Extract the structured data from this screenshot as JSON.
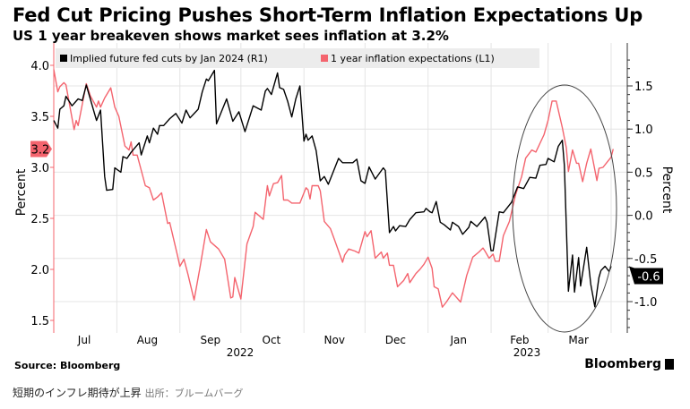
{
  "title": "Fed Cut Pricing Pushes Short-Term Inflation Expectations Up",
  "subtitle": "US 1 year breakeven shows market sees inflation at 3.2%",
  "source": "Source: Bloomberg",
  "logo": "Bloomberg",
  "caption": "短期のインフレ期待が上昇",
  "caption_credit": "出所：ブルームバーグ",
  "chart_data": {
    "type": "line",
    "title": "US 1 year breakeven shows market sees inflation at 3.2%",
    "xlabel": "",
    "ylabel_left": "Percent",
    "ylabel_right": "Percent",
    "ylim_left": [
      1.4,
      4.2
    ],
    "ylim_right": [
      -1.3,
      1.9
    ],
    "yticks_left": [
      "1.5",
      "2.0",
      "2.5",
      "3.0",
      "3.5",
      "4.0"
    ],
    "yticks_right": [
      "-1.0",
      "-0.5",
      "0.0",
      "0.5",
      "1.0",
      "1.5"
    ],
    "xticks": [
      "Jul",
      "Aug",
      "Sep",
      "Oct",
      "Nov",
      "Dec",
      "Jan",
      "Feb",
      "Mar"
    ],
    "year_labels": [
      "2022",
      "2023"
    ],
    "grid": true,
    "legend_position": "top-left",
    "annotation": "ellipse around Feb–Mar 2023",
    "series": [
      {
        "name": "Implied future fed cuts by Jan 2024 (R1)",
        "axis": "right",
        "color": "#000000",
        "last_label": "-0.6",
        "points": [
          [
            "2022-07-01",
            1.1
          ],
          [
            "2022-07-03",
            1.01
          ],
          [
            "2022-07-04",
            1.23
          ],
          [
            "2022-07-06",
            1.27
          ],
          [
            "2022-07-07",
            1.38
          ],
          [
            "2022-07-10",
            1.27
          ],
          [
            "2022-07-13",
            1.35
          ],
          [
            "2022-07-15",
            1.33
          ],
          [
            "2022-07-17",
            1.51
          ],
          [
            "2022-07-22",
            1.1
          ],
          [
            "2022-07-24",
            1.22
          ],
          [
            "2022-07-26",
            0.45
          ],
          [
            "2022-07-27",
            0.29
          ],
          [
            "2022-07-30",
            0.3
          ],
          [
            "2022-07-31",
            0.55
          ],
          [
            "2022-08-03",
            0.5
          ],
          [
            "2022-08-04",
            0.68
          ],
          [
            "2022-08-06",
            0.66
          ],
          [
            "2022-08-08",
            0.73
          ],
          [
            "2022-08-12",
            0.84
          ],
          [
            "2022-08-13",
            0.7
          ],
          [
            "2022-08-16",
            0.92
          ],
          [
            "2022-08-17",
            0.84
          ],
          [
            "2022-08-19",
            1.01
          ],
          [
            "2022-08-21",
            0.94
          ],
          [
            "2022-08-22",
            1.04
          ],
          [
            "2022-08-24",
            1.04
          ],
          [
            "2022-08-27",
            1.12
          ],
          [
            "2022-08-30",
            1.18
          ],
          [
            "2022-09-02",
            1.07
          ],
          [
            "2022-09-04",
            1.22
          ],
          [
            "2022-09-06",
            1.13
          ],
          [
            "2022-09-10",
            1.23
          ],
          [
            "2022-09-12",
            1.43
          ],
          [
            "2022-09-14",
            1.58
          ],
          [
            "2022-09-15",
            1.56
          ],
          [
            "2022-09-18",
            1.68
          ],
          [
            "2022-09-19",
            1.06
          ],
          [
            "2022-09-24",
            1.35
          ],
          [
            "2022-09-27",
            1.09
          ],
          [
            "2022-09-30",
            1.2
          ],
          [
            "2022-10-03",
            0.97
          ],
          [
            "2022-10-07",
            1.27
          ],
          [
            "2022-10-11",
            1.22
          ],
          [
            "2022-10-13",
            1.44
          ],
          [
            "2022-10-14",
            1.47
          ],
          [
            "2022-10-16",
            1.4
          ],
          [
            "2022-10-19",
            1.65
          ],
          [
            "2022-10-20",
            1.48
          ],
          [
            "2022-10-22",
            1.46
          ],
          [
            "2022-10-24",
            1.32
          ],
          [
            "2022-10-26",
            1.14
          ],
          [
            "2022-10-28",
            1.35
          ],
          [
            "2022-10-30",
            1.5
          ],
          [
            "2022-11-01",
            0.86
          ],
          [
            "2022-11-02",
            0.94
          ],
          [
            "2022-11-03",
            0.87
          ],
          [
            "2022-11-05",
            0.92
          ],
          [
            "2022-11-07",
            0.75
          ],
          [
            "2022-11-09",
            0.4
          ],
          [
            "2022-11-11",
            0.45
          ],
          [
            "2022-11-13",
            0.36
          ],
          [
            "2022-11-18",
            0.66
          ],
          [
            "2022-11-20",
            0.61
          ],
          [
            "2022-11-25",
            0.61
          ],
          [
            "2022-11-27",
            0.65
          ],
          [
            "2022-11-29",
            0.4
          ],
          [
            "2022-12-01",
            0.37
          ],
          [
            "2022-12-03",
            0.56
          ],
          [
            "2022-12-06",
            0.42
          ],
          [
            "2022-12-10",
            0.55
          ],
          [
            "2022-12-11",
            0.52
          ],
          [
            "2022-12-13",
            -0.2
          ],
          [
            "2022-12-15",
            -0.13
          ],
          [
            "2022-12-16",
            -0.18
          ],
          [
            "2022-12-18",
            -0.12
          ],
          [
            "2022-12-21",
            -0.13
          ],
          [
            "2022-12-23",
            -0.05
          ],
          [
            "2022-12-26",
            0.03
          ],
          [
            "2022-12-30",
            0.04
          ],
          [
            "2022-12-31",
            0.08
          ],
          [
            "2023-01-02",
            0.04
          ],
          [
            "2023-01-03",
            0.03
          ],
          [
            "2023-01-05",
            0.16
          ],
          [
            "2023-01-07",
            -0.08
          ],
          [
            "2023-01-09",
            -0.11
          ],
          [
            "2023-01-12",
            -0.17
          ],
          [
            "2023-01-13",
            -0.08
          ],
          [
            "2023-01-16",
            -0.13
          ],
          [
            "2023-01-18",
            -0.22
          ],
          [
            "2023-01-21",
            -0.14
          ],
          [
            "2023-01-22",
            -0.07
          ],
          [
            "2023-01-25",
            -0.13
          ],
          [
            "2023-01-29",
            -0.02
          ],
          [
            "2023-01-30",
            -0.08
          ],
          [
            "2023-02-01",
            -0.41
          ],
          [
            "2023-02-02",
            -0.41
          ],
          [
            "2023-02-05",
            0.04
          ],
          [
            "2023-02-07",
            0.03
          ],
          [
            "2023-02-11",
            0.15
          ],
          [
            "2023-02-14",
            0.33
          ],
          [
            "2023-02-17",
            0.31
          ],
          [
            "2023-02-20",
            0.44
          ],
          [
            "2023-02-23",
            0.43
          ],
          [
            "2023-02-25",
            0.58
          ],
          [
            "2023-02-28",
            0.59
          ],
          [
            "2023-03-01",
            0.66
          ],
          [
            "2023-03-04",
            0.62
          ],
          [
            "2023-03-06",
            0.8
          ],
          [
            "2023-03-08",
            0.87
          ],
          [
            "2023-03-09",
            0.58
          ],
          [
            "2023-03-11",
            -0.88
          ],
          [
            "2023-03-13",
            -0.46
          ],
          [
            "2023-03-14",
            -0.89
          ],
          [
            "2023-03-16",
            -0.49
          ],
          [
            "2023-03-17",
            -0.82
          ],
          [
            "2023-03-20",
            -0.37
          ],
          [
            "2023-03-22",
            -0.8
          ],
          [
            "2023-03-24",
            -1.06
          ],
          [
            "2023-03-26",
            -0.72
          ],
          [
            "2023-03-27",
            -0.64
          ],
          [
            "2023-03-29",
            -0.59
          ],
          [
            "2023-03-31",
            -0.65
          ],
          [
            "2023-04-01",
            -0.59
          ]
        ]
      },
      {
        "name": "1 year inflation expectations (L1)",
        "axis": "left",
        "color": "#f4646e",
        "last_label": "3.2",
        "points": [
          [
            "2022-07-01",
            3.96
          ],
          [
            "2022-07-03",
            3.74
          ],
          [
            "2022-07-04",
            3.79
          ],
          [
            "2022-07-06",
            3.83
          ],
          [
            "2022-07-07",
            3.81
          ],
          [
            "2022-07-11",
            3.37
          ],
          [
            "2022-07-12",
            3.46
          ],
          [
            "2022-07-13",
            3.41
          ],
          [
            "2022-07-17",
            3.82
          ],
          [
            "2022-07-19",
            3.7
          ],
          [
            "2022-07-22",
            3.59
          ],
          [
            "2022-07-23",
            3.65
          ],
          [
            "2022-07-24",
            3.59
          ],
          [
            "2022-07-26",
            3.68
          ],
          [
            "2022-07-29",
            3.78
          ],
          [
            "2022-07-31",
            3.59
          ],
          [
            "2022-08-02",
            3.5
          ],
          [
            "2022-08-05",
            3.21
          ],
          [
            "2022-08-07",
            3.17
          ],
          [
            "2022-08-08",
            3.25
          ],
          [
            "2022-08-09",
            3.12
          ],
          [
            "2022-08-11",
            3.12
          ],
          [
            "2022-08-15",
            2.82
          ],
          [
            "2022-08-17",
            2.8
          ],
          [
            "2022-08-19",
            2.68
          ],
          [
            "2022-08-21",
            2.71
          ],
          [
            "2022-08-23",
            2.75
          ],
          [
            "2022-08-26",
            2.45
          ],
          [
            "2022-08-27",
            2.46
          ],
          [
            "2022-08-31",
            2.12
          ],
          [
            "2022-09-01",
            2.03
          ],
          [
            "2022-09-03",
            2.1
          ],
          [
            "2022-09-05",
            1.95
          ],
          [
            "2022-09-08",
            1.7
          ],
          [
            "2022-09-11",
            2.03
          ],
          [
            "2022-09-14",
            2.39
          ],
          [
            "2022-09-16",
            2.27
          ],
          [
            "2022-09-20",
            2.2
          ],
          [
            "2022-09-23",
            2.1
          ],
          [
            "2022-09-26",
            1.72
          ],
          [
            "2022-09-27",
            1.73
          ],
          [
            "2022-09-28",
            1.92
          ],
          [
            "2022-10-01",
            1.71
          ],
          [
            "2022-10-04",
            2.25
          ],
          [
            "2022-10-07",
            2.42
          ],
          [
            "2022-10-08",
            2.56
          ],
          [
            "2022-10-12",
            2.49
          ],
          [
            "2022-10-14",
            2.82
          ],
          [
            "2022-10-15",
            2.72
          ],
          [
            "2022-10-17",
            2.84
          ],
          [
            "2022-10-19",
            2.85
          ],
          [
            "2022-10-21",
            2.92
          ],
          [
            "2022-10-22",
            2.68
          ],
          [
            "2022-10-24",
            2.68
          ],
          [
            "2022-10-26",
            2.65
          ],
          [
            "2022-10-30",
            2.65
          ],
          [
            "2022-11-02",
            2.8
          ],
          [
            "2022-11-03",
            2.78
          ],
          [
            "2022-11-04",
            2.69
          ],
          [
            "2022-11-05",
            2.82
          ],
          [
            "2022-11-08",
            2.82
          ],
          [
            "2022-11-09",
            2.77
          ],
          [
            "2022-11-11",
            2.47
          ],
          [
            "2022-11-14",
            2.4
          ],
          [
            "2022-11-16",
            2.29
          ],
          [
            "2022-11-20",
            2.07
          ],
          [
            "2022-11-21",
            2.14
          ],
          [
            "2022-11-23",
            2.2
          ],
          [
            "2022-11-26",
            2.18
          ],
          [
            "2022-11-28",
            2.16
          ],
          [
            "2022-12-01",
            2.37
          ],
          [
            "2022-12-02",
            2.32
          ],
          [
            "2022-12-04",
            2.38
          ],
          [
            "2022-12-06",
            2.11
          ],
          [
            "2022-12-09",
            2.17
          ],
          [
            "2022-12-10",
            2.11
          ],
          [
            "2022-12-12",
            2.16
          ],
          [
            "2022-12-13",
            2.04
          ],
          [
            "2022-12-15",
            2.04
          ],
          [
            "2022-12-17",
            1.83
          ],
          [
            "2022-12-20",
            1.89
          ],
          [
            "2022-12-22",
            1.96
          ],
          [
            "2022-12-23",
            1.87
          ],
          [
            "2022-12-26",
            1.96
          ],
          [
            "2022-12-28",
            2.0
          ],
          [
            "2022-12-30",
            2.05
          ],
          [
            "2023-01-01",
            2.12
          ],
          [
            "2023-01-03",
            2.01
          ],
          [
            "2023-01-04",
            1.83
          ],
          [
            "2023-01-06",
            1.81
          ],
          [
            "2023-01-08",
            1.63
          ],
          [
            "2023-01-10",
            1.68
          ],
          [
            "2023-01-13",
            1.77
          ],
          [
            "2023-01-17",
            1.68
          ],
          [
            "2023-01-20",
            1.94
          ],
          [
            "2023-01-23",
            2.12
          ],
          [
            "2023-01-26",
            2.17
          ],
          [
            "2023-01-28",
            2.21
          ],
          [
            "2023-01-29",
            2.18
          ],
          [
            "2023-01-31",
            2.11
          ],
          [
            "2023-02-02",
            2.15
          ],
          [
            "2023-02-03",
            2.08
          ],
          [
            "2023-02-05",
            2.08
          ],
          [
            "2023-02-07",
            2.33
          ],
          [
            "2023-02-10",
            2.47
          ],
          [
            "2023-02-13",
            2.73
          ],
          [
            "2023-02-16",
            2.91
          ],
          [
            "2023-02-18",
            3.09
          ],
          [
            "2023-02-21",
            3.17
          ],
          [
            "2023-02-23",
            3.15
          ],
          [
            "2023-02-27",
            3.32
          ],
          [
            "2023-03-01",
            3.46
          ],
          [
            "2023-03-03",
            3.65
          ],
          [
            "2023-03-05",
            3.65
          ],
          [
            "2023-03-08",
            3.39
          ],
          [
            "2023-03-10",
            3.19
          ],
          [
            "2023-03-11",
            2.96
          ],
          [
            "2023-03-13",
            3.17
          ],
          [
            "2023-03-15",
            3.04
          ],
          [
            "2023-03-16",
            3.04
          ],
          [
            "2023-03-18",
            2.86
          ],
          [
            "2023-03-20",
            3.04
          ],
          [
            "2023-03-22",
            3.18
          ],
          [
            "2023-03-25",
            2.87
          ],
          [
            "2023-03-26",
            2.99
          ],
          [
            "2023-03-28",
            3.0
          ],
          [
            "2023-03-30",
            3.05
          ],
          [
            "2023-04-01",
            3.1
          ],
          [
            "2023-04-02",
            3.18
          ]
        ]
      }
    ]
  }
}
